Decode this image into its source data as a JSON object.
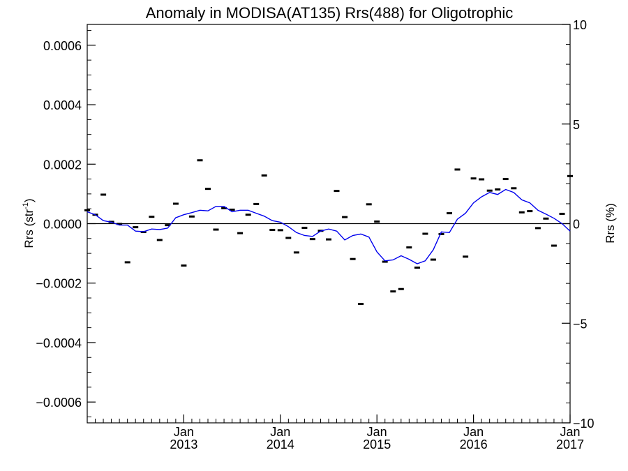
{
  "chart_data": {
    "type": "line",
    "title": "Anomaly in MODISA(AT135) Rrs(488) for Oligotrophic",
    "ylabel_left": "Rrs (str",
    "ylabel_left_sup": "-1",
    "ylabel_left_end": ")",
    "ylabel_right": "Rrs (%)",
    "x_range": [
      "2012-01-01",
      "2017-01-01"
    ],
    "xlim": [
      2012.0,
      2017.0
    ],
    "ylim_left": [
      -0.00067,
      0.00067
    ],
    "ylim_right": [
      -10,
      10
    ],
    "y_ticks_left": [
      {
        "v": 0.0006,
        "label": "0.0006"
      },
      {
        "v": 0.0004,
        "label": "0.0004"
      },
      {
        "v": 0.0002,
        "label": "0.0002"
      },
      {
        "v": 0.0,
        "label": "0.0000"
      },
      {
        "v": -0.0002,
        "label": "−0.0002"
      },
      {
        "v": -0.0004,
        "label": "−0.0004"
      },
      {
        "v": -0.0006,
        "label": "−0.0006"
      }
    ],
    "y_ticks_right": [
      {
        "v": 10,
        "label": "10"
      },
      {
        "v": 5,
        "label": "5"
      },
      {
        "v": 0,
        "label": "0"
      },
      {
        "v": -5,
        "label": "−5"
      },
      {
        "v": -10,
        "label": "−10"
      }
    ],
    "x_ticks": [
      {
        "x": 2013.0,
        "label_month": "Jan",
        "label_year": "2013"
      },
      {
        "x": 2014.0,
        "label_month": "Jan",
        "label_year": "2014"
      },
      {
        "x": 2015.0,
        "label_month": "Jan",
        "label_year": "2015"
      },
      {
        "x": 2016.0,
        "label_month": "Jan",
        "label_year": "2016"
      },
      {
        "x": 2017.0,
        "label_month": "Jan",
        "label_year": "2017"
      }
    ],
    "series": [
      {
        "kind": "monthly_anomaly_markers",
        "color": "#000000",
        "x": [
          2012.0,
          2012.083,
          2012.167,
          2012.25,
          2012.333,
          2012.417,
          2012.5,
          2012.583,
          2012.667,
          2012.75,
          2012.833,
          2012.917,
          2013.0,
          2013.083,
          2013.167,
          2013.25,
          2013.333,
          2013.417,
          2013.5,
          2013.583,
          2013.667,
          2013.75,
          2013.833,
          2013.917,
          2014.0,
          2014.083,
          2014.167,
          2014.25,
          2014.333,
          2014.417,
          2014.5,
          2014.583,
          2014.667,
          2014.75,
          2014.833,
          2014.917,
          2015.0,
          2015.083,
          2015.167,
          2015.25,
          2015.333,
          2015.417,
          2015.5,
          2015.583,
          2015.667,
          2015.75,
          2015.833,
          2015.917,
          2016.0,
          2016.083,
          2016.167,
          2016.25,
          2016.333,
          2016.417,
          2016.5,
          2016.583,
          2016.667,
          2016.75,
          2016.833,
          2016.917,
          2017.0
        ],
        "y": [
          4.5e-05,
          3e-05,
          9.75e-05,
          6e-06,
          -1e-06,
          -0.00013,
          -1.2e-05,
          -2.8e-05,
          2.3e-05,
          -5.5e-05,
          -5e-06,
          6.7e-05,
          -0.000141,
          2.4e-05,
          0.000213,
          0.000117,
          -2e-05,
          5.2e-05,
          4.7e-05,
          -3.2e-05,
          3e-05,
          6.6e-05,
          0.000162,
          -2.1e-05,
          -2.2e-05,
          -4.8e-05,
          -9.7e-05,
          -1.4e-05,
          -5.2e-05,
          -2.4e-05,
          -5.3e-05,
          0.00011,
          2.2e-05,
          -0.000119,
          -0.00027,
          6.5e-05,
          7e-06,
          -0.000128,
          -0.000228,
          -0.00022,
          -8e-05,
          -0.000148,
          -3.4e-05,
          -0.000121,
          -3.5e-05,
          3.5e-05,
          0.000182,
          -0.000111,
          0.000152,
          0.000149,
          0.000111,
          0.000115,
          0.00015,
          0.000119,
          3.8e-05,
          4.2e-05,
          -1.5e-05,
          1.7e-05,
          -7.4e-05,
          3.3e-05,
          0.00016
        ]
      },
      {
        "kind": "running_mean_line",
        "color": "#0000ee",
        "x": [
          2012.0,
          2012.083,
          2012.167,
          2012.25,
          2012.333,
          2012.417,
          2012.5,
          2012.583,
          2012.667,
          2012.75,
          2012.833,
          2012.917,
          2013.0,
          2013.083,
          2013.167,
          2013.25,
          2013.333,
          2013.417,
          2013.5,
          2013.583,
          2013.667,
          2013.75,
          2013.833,
          2013.917,
          2014.0,
          2014.083,
          2014.167,
          2014.25,
          2014.333,
          2014.417,
          2014.5,
          2014.583,
          2014.667,
          2014.75,
          2014.833,
          2014.917,
          2015.0,
          2015.083,
          2015.167,
          2015.25,
          2015.333,
          2015.417,
          2015.5,
          2015.583,
          2015.667,
          2015.75,
          2015.833,
          2015.917,
          2016.0,
          2016.083,
          2016.167,
          2016.25,
          2016.333,
          2016.417,
          2016.5,
          2016.583,
          2016.667,
          2016.75,
          2016.833,
          2016.917,
          2017.0
        ],
        "y": [
          4e-05,
          3e-05,
          1e-05,
          5e-06,
          -5e-06,
          -5e-06,
          -2.5e-05,
          -2.7e-05,
          -1.8e-05,
          -2e-05,
          -1.5e-05,
          2e-05,
          3e-05,
          3.7e-05,
          4.5e-05,
          4.3e-05,
          5.8e-05,
          5.8e-05,
          4e-05,
          4.5e-05,
          4.5e-05,
          3.5e-05,
          2.5e-05,
          1e-05,
          5e-06,
          -1e-05,
          -3e-05,
          -4e-05,
          -4.3e-05,
          -2.5e-05,
          -1.8e-05,
          -2.5e-05,
          -5.5e-05,
          -4e-05,
          -3.5e-05,
          -4.5e-05,
          -9.5e-05,
          -0.000125,
          -0.000122,
          -0.000108,
          -0.00012,
          -0.000135,
          -0.000125,
          -8.8e-05,
          -2.8e-05,
          -3e-05,
          1.5e-05,
          3.5e-05,
          7e-05,
          9e-05,
          0.000105,
          9.8e-05,
          0.000115,
          0.000105,
          8e-05,
          7e-05,
          4.5e-05,
          3.2e-05,
          1.8e-05,
          0.0,
          -2.5e-05
        ]
      }
    ],
    "zero_line": true,
    "grid": false
  }
}
